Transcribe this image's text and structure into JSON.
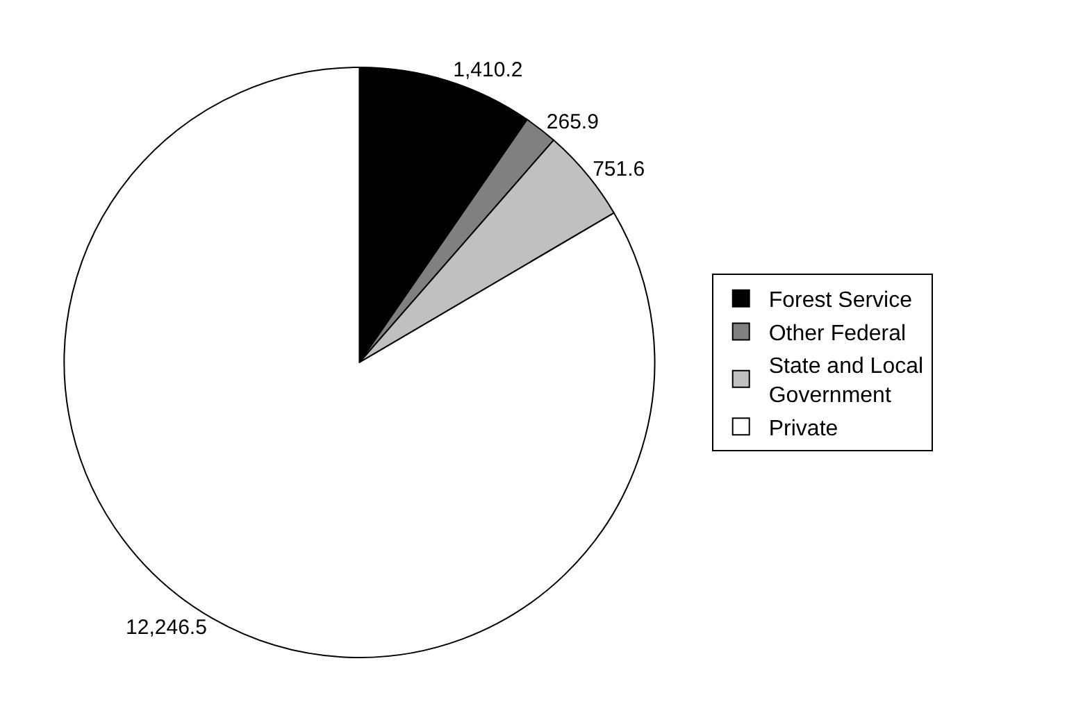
{
  "chart_data": {
    "type": "pie",
    "categories": [
      "Forest Service",
      "Other Federal",
      "State and Local Government",
      "Private"
    ],
    "values": [
      1410.2,
      265.9,
      751.6,
      12246.5
    ],
    "colors": [
      "#000000",
      "#808080",
      "#c0c0c0",
      "#ffffff"
    ],
    "value_labels": [
      "1,410.2",
      "265.9",
      "751.6",
      "12,246.5"
    ],
    "legend": "right"
  }
}
